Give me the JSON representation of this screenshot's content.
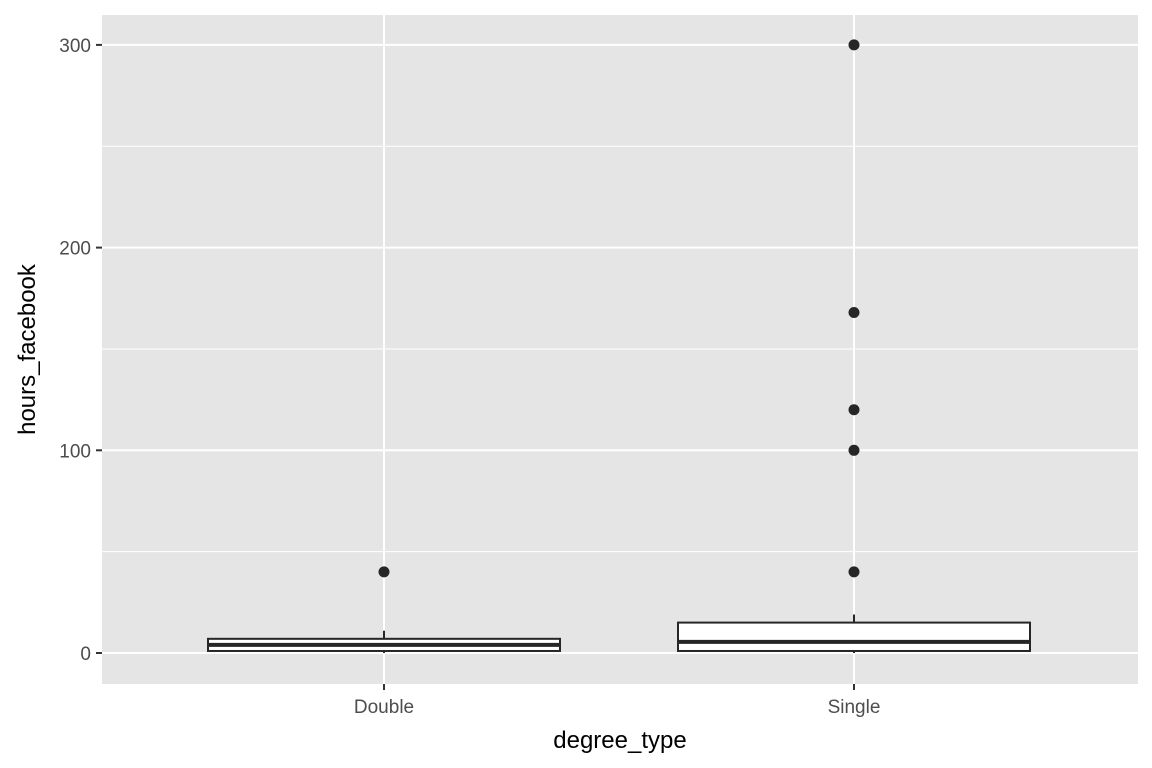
{
  "chart_data": {
    "type": "boxplot",
    "title": "",
    "xlabel": "degree_type",
    "ylabel": "hours_facebook",
    "categories": [
      "Double",
      "Single"
    ],
    "ylim": [
      -15,
      315
    ],
    "yticks": [
      0,
      100,
      200,
      300
    ],
    "ytick_labels": [
      "0",
      "100",
      "200",
      "300"
    ],
    "grid": true,
    "legend": "none",
    "boxes": [
      {
        "category": "Double",
        "whisker_low": 0,
        "q1": 1,
        "median": 4,
        "q3": 7,
        "whisker_high": 11,
        "outliers": [
          40
        ]
      },
      {
        "category": "Single",
        "whisker_low": 0,
        "q1": 1,
        "median": 5.5,
        "q3": 15,
        "whisker_high": 19,
        "outliers": [
          40,
          100,
          120,
          168,
          300
        ]
      }
    ]
  },
  "colors": {
    "panel_background": "#e5e5e5",
    "gridline": "#ffffff",
    "box_fill": "#ffffff",
    "box_stroke": "#262626",
    "outlier": "#262626",
    "tick_text": "#4d4d4d",
    "axis_title": "#000000"
  }
}
